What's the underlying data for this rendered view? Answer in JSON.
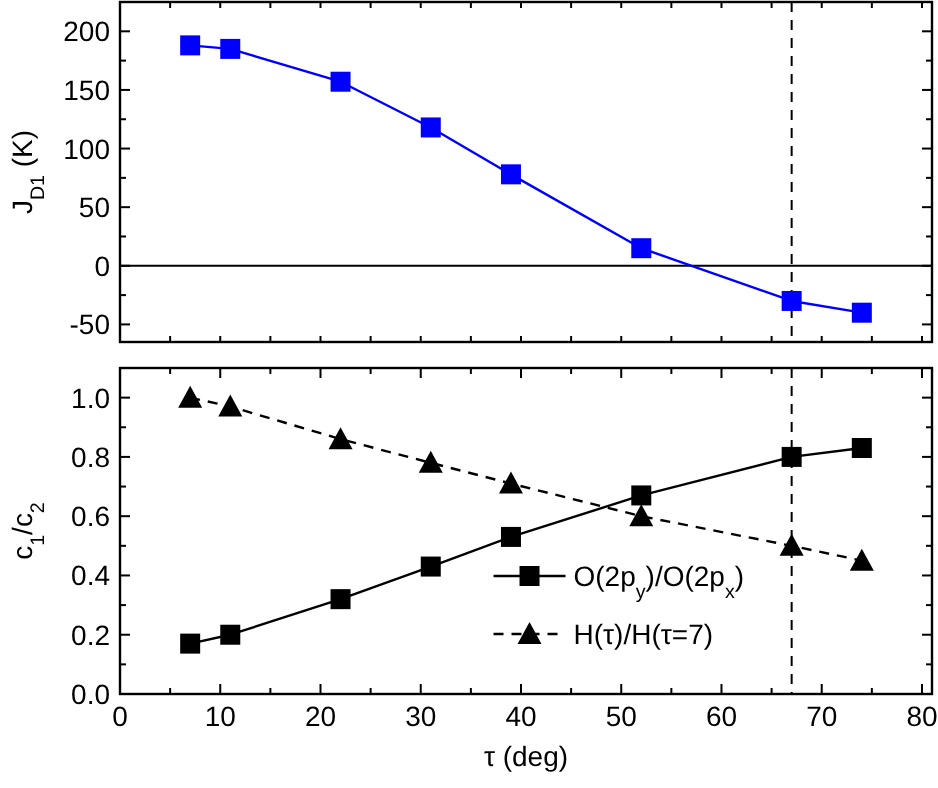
{
  "chart_data": [
    {
      "type": "line",
      "ylabel": "J$_{D1}$ (K)",
      "x": [
        7,
        11,
        22,
        31,
        39,
        52,
        67,
        74
      ],
      "xlim": [
        0,
        81
      ],
      "xticks": [
        0,
        {
          "value": 5,
          "label": null
        },
        {
          "value": 10,
          "label": null
        },
        {
          "value": 15,
          "label": null
        },
        {
          "value": 20,
          "label": null
        },
        {
          "value": 25,
          "label": null
        },
        {
          "value": 30,
          "label": null
        },
        {
          "value": 35,
          "label": null
        },
        {
          "value": 40,
          "label": null
        },
        {
          "value": 45,
          "label": null
        },
        {
          "value": 50,
          "label": null
        },
        {
          "value": 55,
          "label": null
        },
        {
          "value": 60,
          "label": null
        },
        {
          "value": 65,
          "label": null
        },
        {
          "value": 70,
          "label": null
        },
        {
          "value": 75,
          "label": null
        },
        {
          "value": 80,
          "label": null
        }
      ],
      "ylim": [
        -65,
        225
      ],
      "yticks": [
        -50,
        {
          "value": -25,
          "label": null
        },
        0,
        {
          "value": 25,
          "label": null
        },
        50,
        {
          "value": 75,
          "label": null
        },
        100,
        {
          "value": 125,
          "label": null
        },
        150,
        {
          "value": 175,
          "label": null
        },
        200
      ],
      "tick_labels": "y",
      "marker": "square",
      "line_style": "solid",
      "grid": false,
      "legend": false,
      "series": [
        {
          "color": "#0000ff",
          "values": [
            188,
            185,
            157,
            118,
            78,
            15,
            -30,
            -40
          ]
        }
      ],
      "ref_lines": [
        {
          "axis": "x",
          "value": 67,
          "color": "#000000",
          "line_style": "dashed"
        },
        {
          "axis": "y",
          "value": 0,
          "color": "#000000",
          "line_style": "solid"
        }
      ]
    },
    {
      "type": "line",
      "xlabel": "τ (deg)",
      "ylabel": "c$_{1}$/c$_{2}$",
      "x": [
        7,
        11,
        22,
        31,
        39,
        52,
        67,
        74
      ],
      "xlim": [
        0,
        81
      ],
      "xticks": [
        0,
        {
          "value": 5,
          "label": null
        },
        10,
        {
          "value": 15,
          "label": null
        },
        20,
        {
          "value": 25,
          "label": null
        },
        30,
        {
          "value": 35,
          "label": null
        },
        40,
        {
          "value": 45,
          "label": null
        },
        50,
        {
          "value": 55,
          "label": null
        },
        60,
        {
          "value": 65,
          "label": null
        },
        70,
        {
          "value": 75,
          "label": null
        },
        80
      ],
      "ylim": [
        0,
        1.1
      ],
      "yticks": [
        {
          "value": 0,
          "label": "0.0"
        },
        {
          "value": 0.1,
          "label": null
        },
        0.2,
        {
          "value": 0.3,
          "label": null
        },
        0.4,
        {
          "value": 0.5,
          "label": null
        },
        0.6,
        {
          "value": 0.7,
          "label": null
        },
        0.8,
        {
          "value": 0.9,
          "label": null
        },
        {
          "value": 1,
          "label": "1.0"
        }
      ],
      "grid": false,
      "legend": "bottom right",
      "series": [
        {
          "name": "O(2p$_{y}$)/O(2p$_{x}$)",
          "color": "#000000",
          "marker": "square",
          "line_style": "solid",
          "values": [
            0.17,
            0.2,
            0.32,
            0.43,
            0.53,
            0.67,
            0.8,
            0.83
          ]
        },
        {
          "name": "H(τ)/H(τ=7)",
          "color": "#000000",
          "marker": "triangle",
          "line_style": "dashed",
          "values": [
            1.0,
            0.97,
            0.86,
            0.78,
            0.71,
            0.6,
            0.5,
            0.45
          ]
        }
      ],
      "ref_lines": [
        {
          "axis": "x",
          "value": 67,
          "color": "#000000",
          "line_style": "dashed"
        }
      ]
    }
  ]
}
